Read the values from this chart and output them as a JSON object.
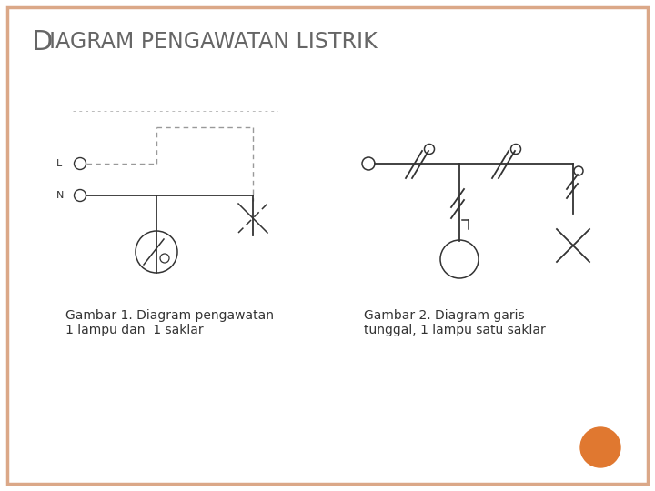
{
  "title_D": "D",
  "title_rest": "IAGRAM PENGAWATAN LISTRIK",
  "title_fontsize_D": 22,
  "title_fontsize_rest": 17,
  "title_color": "#666666",
  "caption1": "Gambar 1. Diagram pengawatan\n1 lampu dan  1 saklar",
  "caption2": "Gambar 2. Diagram garis\ntunggal, 1 lampu satu saklar",
  "caption_fontsize": 10,
  "bg_color": "#ffffff",
  "border_color": "#dba888",
  "line_color": "#333333",
  "dot_line_color": "#999999",
  "orange_dot_color": "#e07830",
  "fig_width": 7.2,
  "fig_height": 5.4
}
